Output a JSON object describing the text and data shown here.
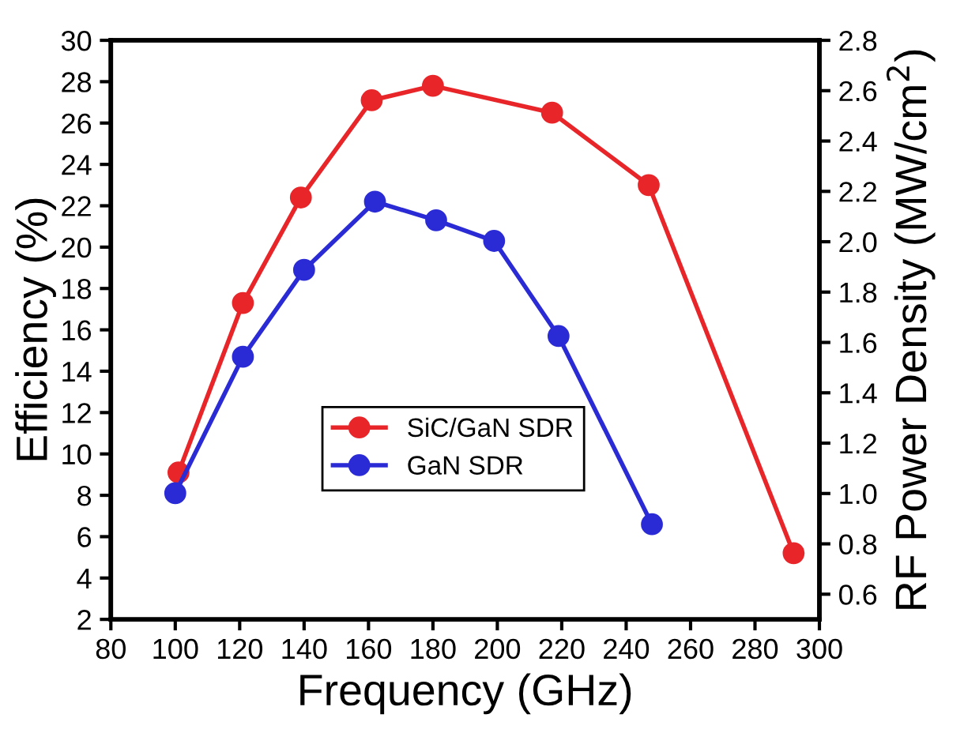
{
  "chart_data": {
    "type": "line",
    "xlabel": "Frequency (GHz)",
    "ylabel": "Efficiency (%)",
    "y2label": "RF Power Density (MW/cm$^{2}$)",
    "xlim": [
      80,
      300
    ],
    "xticks": [
      80,
      100,
      120,
      140,
      160,
      180,
      200,
      220,
      240,
      260,
      280,
      300
    ],
    "ylim": [
      2,
      30
    ],
    "yticks": [
      2,
      4,
      6,
      8,
      10,
      12,
      14,
      16,
      18,
      20,
      22,
      24,
      26,
      28,
      30
    ],
    "y2lim": [
      0.5,
      2.8
    ],
    "y2ticks": [
      0.6,
      0.8,
      {
        "value": 1.0,
        "label": "1.0"
      },
      1.2,
      1.4,
      1.6,
      1.8,
      {
        "value": 2.0,
        "label": "2.0"
      },
      2.2,
      2.4,
      2.6,
      2.8
    ],
    "marker": "circle",
    "line_style": "solid",
    "grid": false,
    "legend": "bottom left",
    "series": [
      {
        "name": "SiC/GaN SDR",
        "color": "#e8262a",
        "x": [
          101,
          121,
          139,
          161,
          180,
          217,
          247,
          292
        ],
        "values": [
          9.1,
          17.3,
          22.4,
          27.1,
          27.8,
          26.5,
          23.0,
          5.2
        ]
      },
      {
        "name": "GaN SDR",
        "color": "#2b2bd6",
        "x": [
          100,
          121,
          140,
          162,
          181,
          199,
          219,
          248
        ],
        "values": [
          8.1,
          14.7,
          18.9,
          22.2,
          21.3,
          20.3,
          15.7,
          6.6
        ]
      }
    ]
  }
}
